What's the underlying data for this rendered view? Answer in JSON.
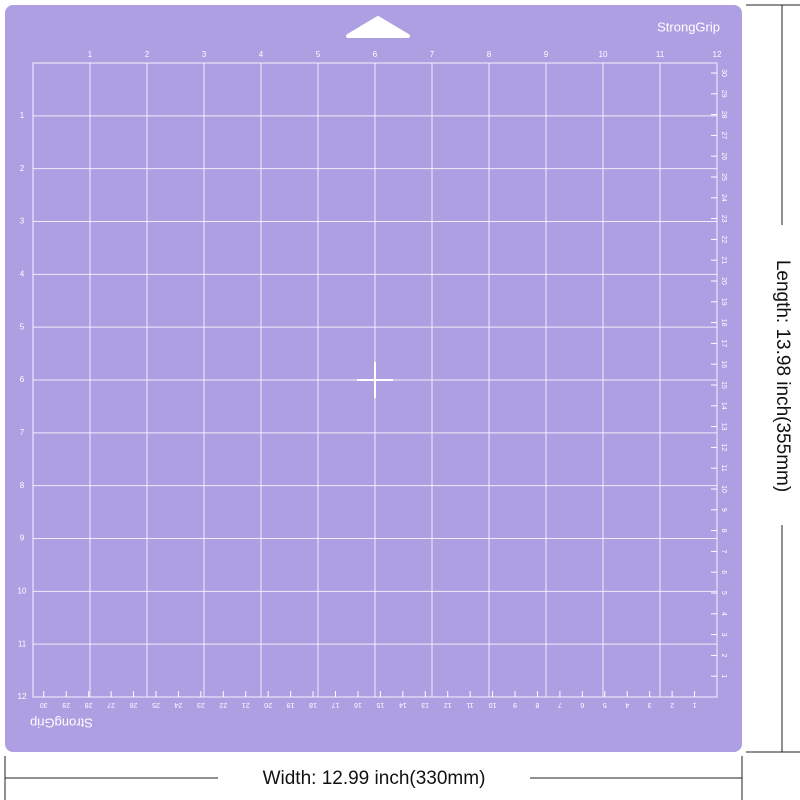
{
  "mat": {
    "brand_top": "StrongGrip",
    "brand_bottom": "StrongGrip",
    "inch_top": [
      1,
      2,
      3,
      4,
      5,
      6,
      7,
      8,
      9,
      10,
      11,
      12
    ],
    "inch_left": [
      1,
      2,
      3,
      4,
      5,
      6,
      7,
      8,
      9,
      10,
      11,
      12
    ],
    "cm_right": [
      1,
      2,
      3,
      4,
      5,
      6,
      7,
      8,
      9,
      10,
      11,
      12,
      13,
      14,
      15,
      16,
      17,
      18,
      19,
      20,
      21,
      22,
      23,
      24,
      25,
      26,
      27,
      28,
      29,
      30
    ],
    "cm_bottom": [
      1,
      2,
      3,
      4,
      5,
      6,
      7,
      8,
      9,
      10,
      11,
      12,
      13,
      14,
      15,
      16,
      17,
      18,
      19,
      20,
      21,
      22,
      23,
      24,
      25,
      26,
      27,
      28,
      29,
      30
    ]
  },
  "dimensions": {
    "length": "Length: 13.98 inch(355mm)",
    "width": "Width: 12.99 inch(330mm)"
  }
}
